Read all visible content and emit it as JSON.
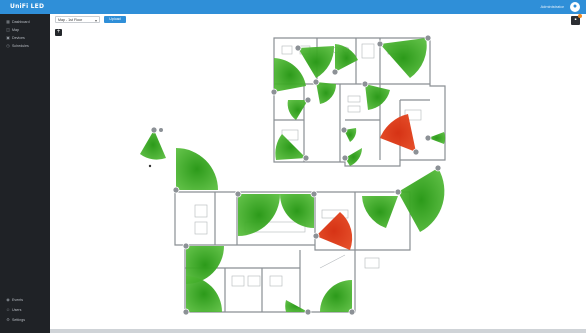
{
  "brand": {
    "logo_text": "UniFi LED",
    "accent": "#2f8fd8",
    "sidebar_bg": "#1f2226"
  },
  "header": {
    "user_label": "Administrator",
    "avatar_glyph": "●",
    "notification_color": "#f08a24"
  },
  "sidebar": {
    "top_items": [
      {
        "icon": "dashboard-icon",
        "glyph": "▦",
        "label": "Dashboard"
      },
      {
        "icon": "map-icon",
        "glyph": "◫",
        "label": "Map"
      },
      {
        "icon": "devices-icon",
        "glyph": "▣",
        "label": "Devices"
      },
      {
        "icon": "schedules-icon",
        "glyph": "◷",
        "label": "Schedules"
      }
    ],
    "bottom_items": [
      {
        "icon": "events-icon",
        "glyph": "◉",
        "label": "Events"
      },
      {
        "icon": "users-icon",
        "glyph": "☺",
        "label": "Users"
      },
      {
        "icon": "settings-icon",
        "glyph": "⚙",
        "label": "Settings"
      }
    ]
  },
  "toolbar": {
    "floor_select_value": "Map - 1st Floor",
    "floor_select_caret": "▾",
    "apply_button_label": "Upload",
    "add_glyph": "+",
    "edit_glyph": "▪"
  },
  "map": {
    "sensor_color_normal": "#3fae2a",
    "sensor_color_alert": "#e0391a"
  }
}
